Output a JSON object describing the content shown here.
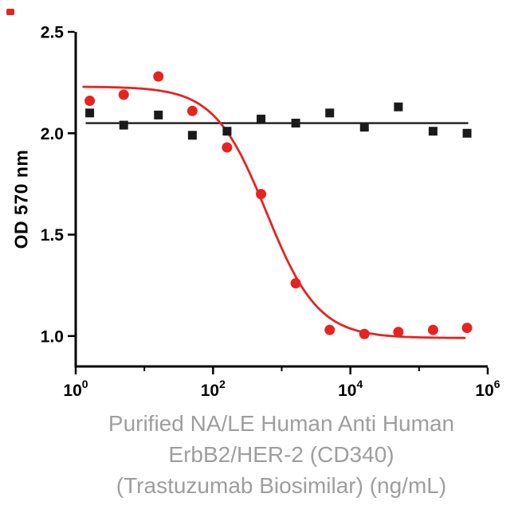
{
  "figure": {
    "background": "#ffffff",
    "corner_mark_color": "#e62320",
    "axis_color": "#000000",
    "xlabel_color": "#9e9e9e"
  },
  "chart_data": {
    "type": "scatter",
    "title": "",
    "ylabel": "OD 570 nm",
    "xlabel_lines": [
      "Purified NA/LE Human Anti Human",
      "ErbB2/HER-2 (CD340)",
      "(Trastuzumab Biosimilar) (ng/mL)"
    ],
    "x_scale": "log10",
    "xlim_exponents": [
      0,
      6
    ],
    "ylim": [
      0.85,
      2.5
    ],
    "x_major_tick_exponents": [
      0,
      2,
      4,
      6
    ],
    "x_minor_tick_exponents": [
      1,
      3,
      5
    ],
    "y_ticks": [
      "1.0",
      "1.5",
      "2.0",
      "2.5"
    ],
    "grid": false,
    "legend": "none",
    "series": [
      {
        "name": "black squares (flat control)",
        "marker": "square",
        "color": "#1a1a1a",
        "x": [
          1.6,
          5,
          16,
          50,
          160,
          500,
          1600,
          5000,
          16000,
          50000,
          160000,
          500000
        ],
        "y": [
          2.1,
          2.04,
          2.09,
          1.99,
          2.01,
          2.07,
          2.05,
          2.1,
          2.03,
          2.13,
          2.01,
          2.0
        ],
        "fit": {
          "model": "constant",
          "value": 2.05,
          "x_start": 1.4,
          "x_end": 520000
        }
      },
      {
        "name": "red circles (dose-response)",
        "marker": "circle",
        "color": "#e62320",
        "x": [
          1.6,
          5,
          16,
          50,
          160,
          500,
          1600,
          5000,
          16000,
          50000,
          160000,
          500000
        ],
        "y": [
          2.16,
          2.19,
          2.28,
          2.11,
          1.93,
          1.7,
          1.26,
          1.03,
          1.01,
          1.02,
          1.03,
          1.04
        ],
        "fit": {
          "model": "4PL",
          "top": 2.23,
          "bottom": 0.99,
          "ec50": 600,
          "hill": 1.15,
          "x_start": 1.3,
          "x_end": 480000
        }
      }
    ]
  }
}
